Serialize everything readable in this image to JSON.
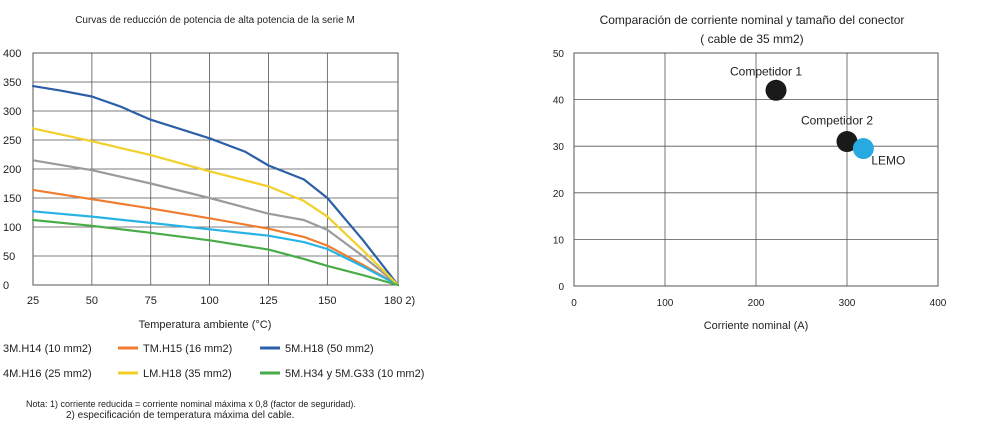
{
  "chart_data": [
    {
      "type": "line",
      "title": "Curvas de reducción de potencia de alta potencia de la serie M",
      "xlabel": "Temperatura ambiente (°C)",
      "ylabel": "",
      "xlim": [
        25,
        180
      ],
      "ylim": [
        0,
        400
      ],
      "x_ticks": [
        25,
        50,
        75,
        100,
        125,
        150,
        180
      ],
      "x_tick_labels": [
        "25",
        "50",
        "75",
        "100",
        "125",
        "150",
        "180 2)"
      ],
      "y_ticks": [
        0,
        50,
        100,
        150,
        200,
        250,
        300,
        350,
        400
      ],
      "y_tick_labels": [
        "0",
        "50",
        "100",
        "150",
        "200",
        "250",
        "300",
        "350",
        "400"
      ],
      "grid": true,
      "legend_position": "bottom",
      "series": [
        {
          "name": "3M.H14 (10 mm2)",
          "color": "#9b9b9b",
          "x": [
            25,
            50,
            75,
            100,
            125,
            140,
            150,
            165,
            180
          ],
          "y": [
            215,
            198,
            175,
            150,
            123,
            112,
            95,
            50,
            0
          ]
        },
        {
          "name": "TM.H15 (16 mm2)",
          "color": "#ef7d31",
          "x": [
            25,
            50,
            75,
            100,
            125,
            140,
            150,
            165,
            180
          ],
          "y": [
            164,
            148,
            132,
            115,
            97,
            83,
            68,
            35,
            0
          ]
        },
        {
          "name": "5M.H18 (50 mm2)",
          "color": "#2c5fa8",
          "x": [
            25,
            37,
            50,
            62,
            75,
            100,
            115,
            125,
            140,
            150,
            165,
            180
          ],
          "y": [
            343,
            335,
            325,
            308,
            285,
            253,
            230,
            206,
            182,
            150,
            78,
            0
          ]
        },
        {
          "name": "4M.H16 (25 mm2)",
          "color": "#27b4e4",
          "x": [
            25,
            50,
            75,
            100,
            125,
            140,
            150,
            165,
            180
          ],
          "y": [
            127,
            118,
            107,
            96,
            85,
            74,
            62,
            32,
            0
          ]
        },
        {
          "name": "LM.H18 (35 mm2)",
          "color": "#f2d02a",
          "x": [
            25,
            50,
            75,
            100,
            125,
            140,
            150,
            165,
            180
          ],
          "y": [
            270,
            248,
            224,
            196,
            170,
            145,
            118,
            60,
            0
          ]
        },
        {
          "name": "5M.H34 y 5M.G33 (10 mm2)",
          "color": "#4aac48",
          "x": [
            25,
            50,
            75,
            100,
            125,
            140,
            150,
            165,
            180
          ],
          "y": [
            112,
            102,
            90,
            77,
            61,
            45,
            33,
            17,
            0
          ]
        }
      ],
      "note_lines": [
        "Nota: 1) corriente reducida = corriente nominal máxima x 0,8 (factor de seguridad).",
        "2) especificación de temperatura máxima del cable."
      ]
    },
    {
      "type": "scatter",
      "title": "Comparación de corriente nominal y tamaño del conector",
      "subtitle": "( cable de 35 mm2)",
      "xlabel": "Corriente nominal (A)",
      "ylabel": "",
      "xlim": [
        0,
        400
      ],
      "ylim": [
        0,
        50
      ],
      "x_ticks": [
        0,
        100,
        200,
        300,
        400
      ],
      "y_ticks": [
        0,
        10,
        20,
        30,
        40,
        50
      ],
      "grid": true,
      "points": [
        {
          "name": "Competidor 1",
          "x": 222,
          "y": 42,
          "color": "#1a1a1a"
        },
        {
          "name": "Competidor 2",
          "x": 300,
          "y": 31,
          "color": "#1a1a1a"
        },
        {
          "name": "LEMO",
          "x": 318,
          "y": 29.5,
          "color": "#28a9e1"
        }
      ]
    }
  ]
}
